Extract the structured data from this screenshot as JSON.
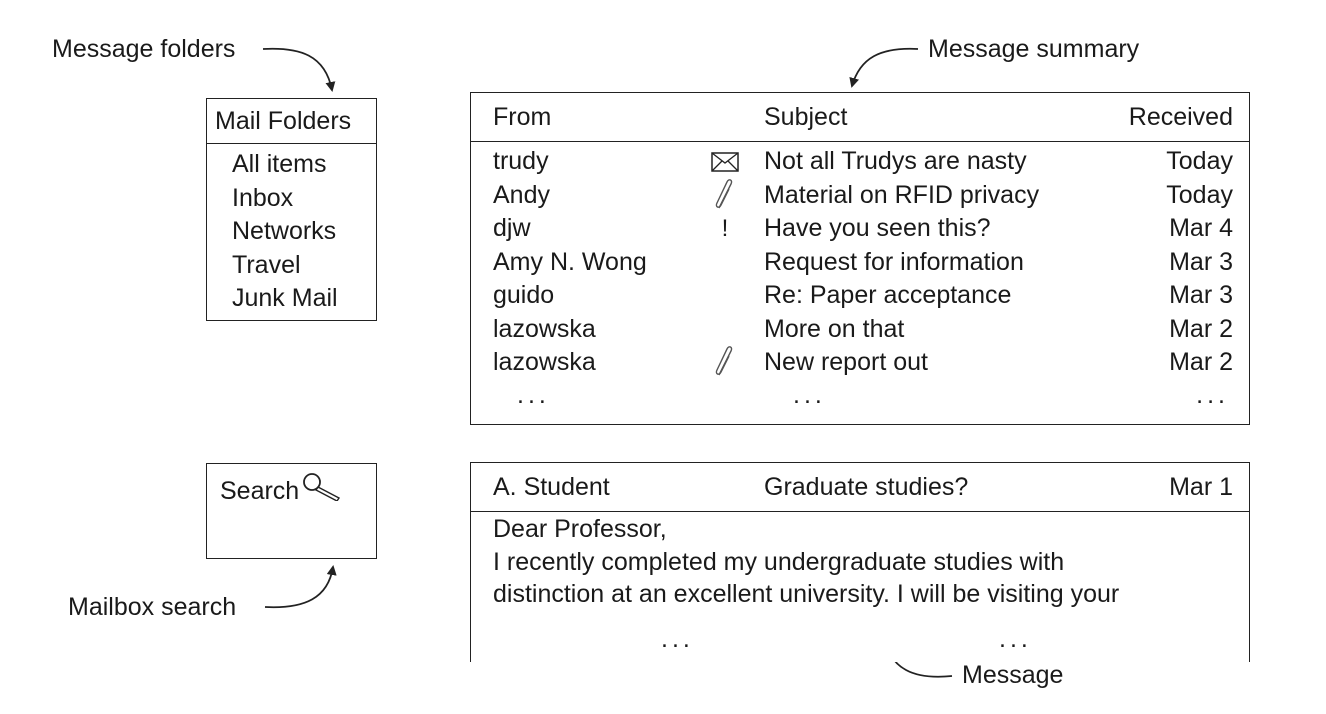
{
  "callouts": {
    "folders": "Message folders",
    "summary": "Message summary",
    "search": "Mailbox search",
    "message": "Message"
  },
  "folders": {
    "title": "Mail Folders",
    "items": [
      "All items",
      "Inbox",
      "Networks",
      "Travel",
      "Junk Mail"
    ]
  },
  "search": {
    "label": "Search",
    "icon": "magnifier-icon"
  },
  "summary": {
    "headers": {
      "from": "From",
      "subject": "Subject",
      "received": "Received"
    },
    "rows": [
      {
        "from": "trudy",
        "icon": "envelope-icon",
        "subject": "Not all Trudys are nasty",
        "received": "Today"
      },
      {
        "from": "Andy",
        "icon": "paperclip-icon",
        "subject": "Material on RFID privacy",
        "received": "Today"
      },
      {
        "from": "djw",
        "icon": "exclamation-icon",
        "icon_text": "!",
        "subject": "Have you seen this?",
        "received": "Mar 4"
      },
      {
        "from": "Amy N. Wong",
        "icon": "",
        "subject": "Request for information",
        "received": "Mar 3"
      },
      {
        "from": "guido",
        "icon": "",
        "subject": "Re: Paper acceptance",
        "received": "Mar 3"
      },
      {
        "from": "lazowska",
        "icon": "",
        "subject": "More on that",
        "received": "Mar 2"
      },
      {
        "from": "lazowska",
        "icon": "paperclip-icon",
        "subject": "New report out",
        "received": "Mar 2"
      }
    ],
    "ellipsis": "..."
  },
  "message": {
    "from": "A. Student",
    "subject": "Graduate studies?",
    "date": "Mar 1",
    "body": [
      "Dear Professor,",
      "I recently completed my undergraduate studies with",
      "distinction at an excellent university. I will be visiting your"
    ],
    "ellipsis": "..."
  }
}
